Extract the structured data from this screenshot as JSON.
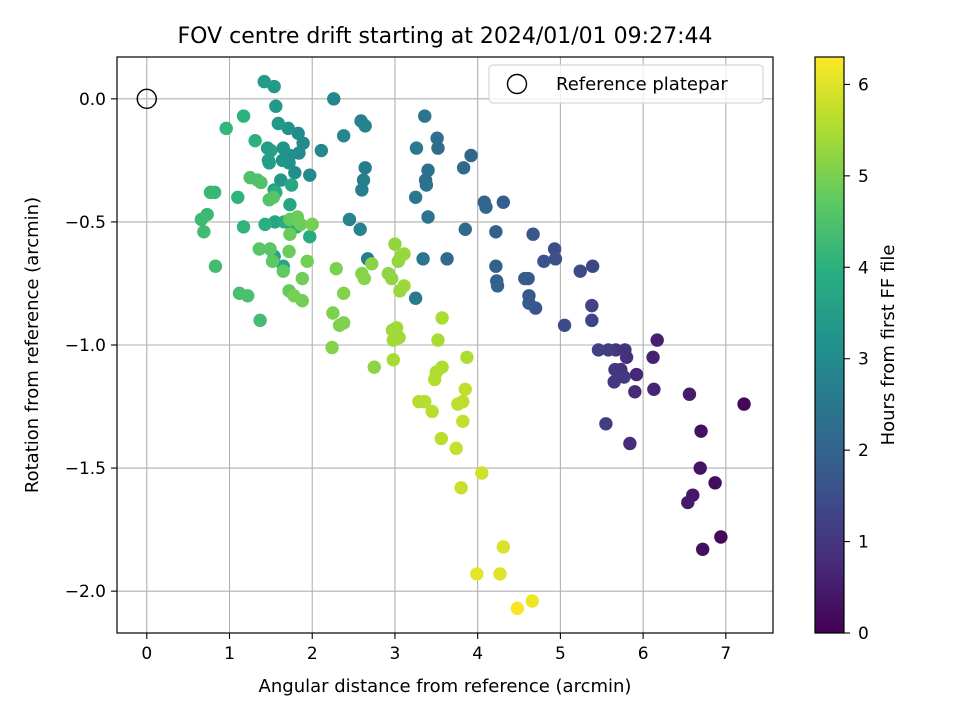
{
  "chart_data": {
    "type": "scatter",
    "title": "FOV centre drift starting at 2024/01/01 09:27:44",
    "xlabel": "Angular distance from reference (arcmin)",
    "ylabel": "Rotation from reference (arcmin)",
    "xlim": [
      -0.36,
      7.57
    ],
    "ylim": [
      -2.17,
      0.17
    ],
    "xticks": [
      0,
      1,
      2,
      3,
      4,
      5,
      6,
      7
    ],
    "xtick_labels": [
      "0",
      "1",
      "2",
      "3",
      "4",
      "5",
      "6",
      "7"
    ],
    "yticks": [
      0.0,
      -0.5,
      -1.0,
      -1.5,
      -2.0
    ],
    "ytick_labels": [
      "0.0",
      "−0.5",
      "−1.0",
      "−1.5",
      "−2.0"
    ],
    "grid": true,
    "legend": {
      "position": "upper right",
      "entries": [
        "Reference platepar"
      ]
    },
    "reference_point": {
      "x": 0,
      "y": 0
    },
    "colorbar": {
      "label": "Hours from first FF file",
      "colormap": "viridis",
      "range": [
        0,
        6.3
      ],
      "ticks": [
        0,
        1,
        2,
        3,
        4,
        5,
        6
      ],
      "tick_labels": [
        "0",
        "1",
        "2",
        "3",
        "4",
        "5",
        "6"
      ]
    },
    "series": [
      {
        "points": [
          [
            7.22,
            -1.24,
            0.1
          ],
          [
            6.94,
            -1.78,
            0.15
          ],
          [
            6.87,
            -1.56,
            0.2
          ],
          [
            6.72,
            -1.83,
            0.25
          ],
          [
            6.7,
            -1.35,
            0.3
          ],
          [
            6.69,
            -1.5,
            0.35
          ],
          [
            6.6,
            -1.61,
            0.4
          ],
          [
            6.54,
            -1.64,
            0.45
          ],
          [
            6.56,
            -1.2,
            0.5
          ],
          [
            6.17,
            -0.98,
            0.55
          ],
          [
            6.12,
            -1.05,
            0.6
          ],
          [
            6.13,
            -1.18,
            0.65
          ],
          [
            5.92,
            -1.12,
            0.7
          ],
          [
            5.9,
            -1.19,
            0.75
          ],
          [
            5.84,
            -1.4,
            0.8
          ],
          [
            5.8,
            -1.05,
            0.85
          ],
          [
            5.78,
            -1.02,
            0.9
          ],
          [
            5.73,
            -1.1,
            0.92
          ],
          [
            5.67,
            -1.02,
            0.95
          ],
          [
            5.66,
            -1.1,
            1.0
          ],
          [
            5.65,
            -1.15,
            1.05
          ],
          [
            5.77,
            -1.13,
            1.08
          ],
          [
            5.58,
            -1.02,
            1.1
          ],
          [
            5.55,
            -1.32,
            1.15
          ],
          [
            5.46,
            -1.02,
            1.2
          ],
          [
            5.38,
            -0.9,
            1.25
          ],
          [
            5.38,
            -0.84,
            1.3
          ],
          [
            5.39,
            -0.68,
            1.35
          ],
          [
            5.24,
            -0.7,
            1.4
          ],
          [
            5.05,
            -0.92,
            1.45
          ],
          [
            4.93,
            -0.61,
            1.5
          ],
          [
            4.94,
            -0.65,
            1.55
          ],
          [
            4.8,
            -0.66,
            1.6
          ],
          [
            4.7,
            -0.85,
            1.65
          ],
          [
            4.67,
            -0.55,
            1.7
          ],
          [
            4.61,
            -0.73,
            1.73
          ],
          [
            4.62,
            -0.8,
            1.76
          ],
          [
            4.62,
            -0.83,
            1.8
          ],
          [
            4.57,
            -0.73,
            1.83
          ],
          [
            4.31,
            -0.42,
            1.86
          ],
          [
            4.22,
            -0.54,
            1.9
          ],
          [
            4.22,
            -0.68,
            1.93
          ],
          [
            4.23,
            -0.74,
            1.96
          ],
          [
            4.24,
            -0.76,
            2.0
          ],
          [
            4.08,
            -0.42,
            2.03
          ],
          [
            4.1,
            -0.44,
            2.06
          ],
          [
            3.92,
            -0.23,
            2.1
          ],
          [
            3.83,
            -0.28,
            2.13
          ],
          [
            3.85,
            -0.53,
            2.16
          ],
          [
            3.63,
            -0.65,
            2.2
          ],
          [
            3.52,
            -0.2,
            2.23
          ],
          [
            3.51,
            -0.16,
            2.26
          ],
          [
            3.4,
            -0.29,
            2.3
          ],
          [
            3.37,
            -0.33,
            2.33
          ],
          [
            3.38,
            -0.35,
            2.36
          ],
          [
            3.4,
            -0.48,
            2.4
          ],
          [
            3.36,
            -0.07,
            2.43
          ],
          [
            3.34,
            -0.65,
            2.46
          ],
          [
            3.25,
            -0.4,
            2.5
          ],
          [
            3.26,
            -0.2,
            2.53
          ],
          [
            3.25,
            -0.81,
            2.56
          ],
          [
            2.67,
            -0.65,
            2.6
          ],
          [
            2.64,
            -0.28,
            2.63
          ],
          [
            2.62,
            -0.33,
            2.66
          ],
          [
            2.6,
            -0.37,
            2.7
          ],
          [
            2.59,
            -0.09,
            2.73
          ],
          [
            2.64,
            -0.11,
            2.76
          ],
          [
            2.58,
            -0.53,
            2.8
          ],
          [
            2.45,
            -0.49,
            2.83
          ],
          [
            2.38,
            -0.15,
            2.86
          ],
          [
            2.26,
            0.0,
            2.9
          ],
          [
            2.11,
            -0.21,
            2.93
          ],
          [
            1.97,
            -0.31,
            2.96
          ],
          [
            1.89,
            -0.18,
            3.0
          ],
          [
            1.84,
            -0.22,
            3.03
          ],
          [
            1.83,
            -0.14,
            3.06
          ],
          [
            1.79,
            -0.3,
            3.1
          ],
          [
            1.73,
            -0.23,
            3.13
          ],
          [
            1.72,
            -0.26,
            3.16
          ],
          [
            1.71,
            -0.12,
            3.2
          ],
          [
            1.65,
            -0.2,
            3.23
          ],
          [
            1.64,
            -0.25,
            3.26
          ],
          [
            1.62,
            -0.33,
            3.3
          ],
          [
            1.59,
            -0.1,
            3.33
          ],
          [
            1.56,
            -0.03,
            3.36
          ],
          [
            1.54,
            0.05,
            3.4
          ],
          [
            1.42,
            0.07,
            3.43
          ],
          [
            1.46,
            -0.2,
            3.46
          ],
          [
            1.47,
            -0.25,
            3.5
          ],
          [
            1.48,
            -0.26,
            3.53
          ],
          [
            1.5,
            -0.21,
            3.56
          ],
          [
            1.54,
            -0.37,
            3.6
          ],
          [
            1.54,
            -0.64,
            3.63
          ],
          [
            1.55,
            -0.5,
            3.66
          ],
          [
            1.65,
            -0.68,
            3.7
          ],
          [
            1.75,
            -0.35,
            3.73
          ],
          [
            1.73,
            -0.43,
            3.76
          ],
          [
            1.74,
            -0.51,
            3.8
          ],
          [
            1.81,
            -0.52,
            3.83
          ],
          [
            1.97,
            -0.56,
            3.86
          ],
          [
            1.66,
            -0.5,
            3.9
          ],
          [
            1.56,
            -0.38,
            3.93
          ],
          [
            1.43,
            -0.51,
            3.96
          ],
          [
            1.31,
            -0.17,
            4.0
          ],
          [
            1.17,
            -0.07,
            4.03
          ],
          [
            1.1,
            -0.4,
            4.06
          ],
          [
            1.17,
            -0.52,
            4.1
          ],
          [
            0.96,
            -0.12,
            4.13
          ],
          [
            0.82,
            -0.38,
            4.16
          ],
          [
            0.77,
            -0.38,
            4.2
          ],
          [
            0.73,
            -0.47,
            4.23
          ],
          [
            0.66,
            -0.49,
            4.26
          ],
          [
            0.69,
            -0.54,
            4.3
          ],
          [
            0.83,
            -0.68,
            4.33
          ],
          [
            1.37,
            -0.9,
            4.36
          ],
          [
            1.12,
            -0.79,
            4.4
          ],
          [
            1.22,
            -0.8,
            4.43
          ],
          [
            1.34,
            -0.33,
            4.46
          ],
          [
            1.25,
            -0.32,
            4.5
          ],
          [
            1.38,
            -0.34,
            4.53
          ],
          [
            1.48,
            -0.41,
            4.56
          ],
          [
            1.53,
            -0.4,
            4.6
          ],
          [
            1.36,
            -0.61,
            4.63
          ],
          [
            1.49,
            -0.61,
            4.66
          ],
          [
            1.52,
            -0.66,
            4.7
          ],
          [
            1.65,
            -0.7,
            4.73
          ],
          [
            1.72,
            -0.78,
            4.76
          ],
          [
            1.73,
            -0.49,
            4.8
          ],
          [
            1.73,
            -0.55,
            4.82
          ],
          [
            1.72,
            -0.62,
            4.84
          ],
          [
            1.82,
            -0.48,
            4.86
          ],
          [
            1.86,
            -0.51,
            4.88
          ],
          [
            1.88,
            -0.73,
            4.9
          ],
          [
            1.88,
            -0.82,
            4.92
          ],
          [
            1.94,
            -0.66,
            4.94
          ],
          [
            2.0,
            -0.51,
            4.96
          ],
          [
            1.78,
            -0.8,
            4.98
          ],
          [
            2.29,
            -0.69,
            5.0
          ],
          [
            2.25,
            -0.87,
            5.02
          ],
          [
            2.33,
            -0.92,
            5.04
          ],
          [
            2.38,
            -0.91,
            5.06
          ],
          [
            2.38,
            -0.79,
            5.08
          ],
          [
            2.24,
            -1.01,
            5.1
          ],
          [
            2.6,
            -0.71,
            5.12
          ],
          [
            2.63,
            -0.73,
            5.14
          ],
          [
            2.72,
            -0.67,
            5.16
          ],
          [
            2.75,
            -1.09,
            5.18
          ],
          [
            2.92,
            -0.71,
            5.2
          ],
          [
            2.96,
            -0.73,
            5.22
          ],
          [
            3.0,
            -0.59,
            5.24
          ],
          [
            3.04,
            -0.66,
            5.26
          ],
          [
            3.07,
            -0.64,
            5.28
          ],
          [
            3.11,
            -0.63,
            5.3
          ],
          [
            3.06,
            -0.78,
            5.32
          ],
          [
            3.11,
            -0.76,
            5.34
          ],
          [
            2.97,
            -0.94,
            5.36
          ],
          [
            3.02,
            -0.93,
            5.38
          ],
          [
            3.05,
            -0.97,
            5.4
          ],
          [
            2.98,
            -0.98,
            5.42
          ],
          [
            2.98,
            -1.06,
            5.44
          ],
          [
            3.57,
            -0.89,
            5.46
          ],
          [
            3.52,
            -0.98,
            5.48
          ],
          [
            3.87,
            -1.05,
            5.5
          ],
          [
            3.57,
            -1.09,
            5.52
          ],
          [
            3.5,
            -1.11,
            5.54
          ],
          [
            3.48,
            -1.14,
            5.56
          ],
          [
            3.29,
            -1.23,
            5.58
          ],
          [
            3.36,
            -1.23,
            5.6
          ],
          [
            3.45,
            -1.27,
            5.62
          ],
          [
            3.56,
            -1.38,
            5.64
          ],
          [
            3.76,
            -1.24,
            5.66
          ],
          [
            3.82,
            -1.23,
            5.68
          ],
          [
            3.85,
            -1.18,
            5.7
          ],
          [
            3.82,
            -1.31,
            5.72
          ],
          [
            3.74,
            -1.42,
            5.74
          ],
          [
            3.8,
            -1.58,
            5.78
          ],
          [
            4.05,
            -1.52,
            5.85
          ],
          [
            4.31,
            -1.82,
            5.95
          ],
          [
            4.27,
            -1.93,
            6.0
          ],
          [
            3.99,
            -1.93,
            6.05
          ],
          [
            4.66,
            -2.04,
            6.15
          ],
          [
            4.48,
            -2.07,
            6.25
          ]
        ]
      }
    ]
  }
}
